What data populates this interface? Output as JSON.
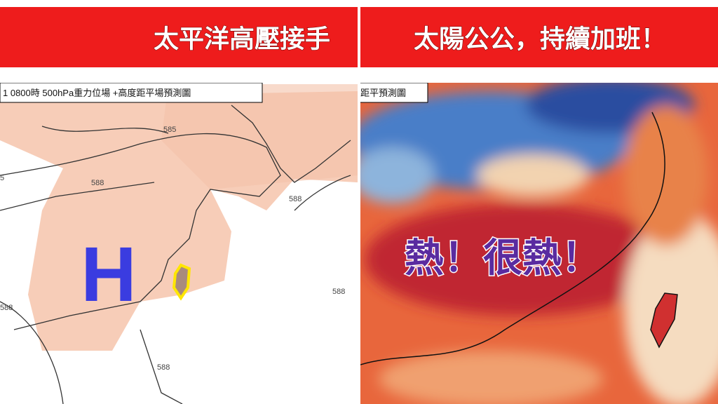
{
  "left_panel": {
    "banner": "太平洋高壓接手",
    "header_label": "1 0800時  500hPa重力位場 +高度距平場預測圖",
    "contour_labels": [
      "585",
      "588",
      "588",
      "588",
      "588",
      "588",
      "5"
    ],
    "symbol": "H"
  },
  "right_panel": {
    "banner": "太陽公公，持續加班！",
    "header_label": "距平預測圖",
    "overlay_text": "熱！很熱！"
  }
}
